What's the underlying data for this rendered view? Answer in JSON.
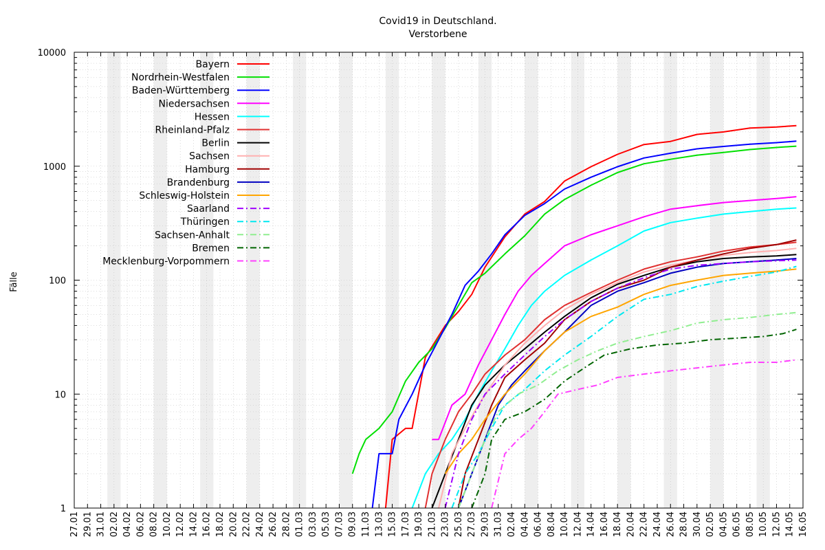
{
  "chart_data": {
    "type": "line",
    "title": "Covid19 in Deutschland.",
    "subtitle": "Verstorbene",
    "xlabel": "",
    "ylabel": "Fälle",
    "y_scale": "log",
    "ylim": [
      1,
      10000
    ],
    "y_ticks": [
      1,
      10,
      100,
      1000,
      10000
    ],
    "y_tick_labels": [
      "1",
      "10",
      "100",
      "1000",
      "10000"
    ],
    "xlim": [
      "2020-01-27",
      "2020-05-16"
    ],
    "x_tick_labels": [
      "27.01",
      "29.01",
      "31.01",
      "02.02",
      "04.02",
      "06.02",
      "08.02",
      "10.02",
      "12.02",
      "14.02",
      "16.02",
      "18.02",
      "20.02",
      "22.02",
      "24.02",
      "26.02",
      "28.02",
      "01.03",
      "03.03",
      "05.03",
      "07.03",
      "09.03",
      "11.03",
      "13.03",
      "15.03",
      "17.03",
      "19.03",
      "21.03",
      "23.03",
      "25.03",
      "27.03",
      "29.03",
      "31.03",
      "02.04",
      "04.04",
      "06.04",
      "08.04",
      "10.04",
      "12.04",
      "14.04",
      "16.04",
      "18.04",
      "20.04",
      "22.04",
      "24.04",
      "26.04",
      "28.04",
      "30.04",
      "02.05",
      "04.05",
      "06.05",
      "08.05",
      "10.05",
      "12.05",
      "14.05",
      "16.05"
    ],
    "grid": true,
    "weekend_shading": true,
    "legend_position": "top-left",
    "series": [
      {
        "name": "Bayern",
        "color": "#ff0000",
        "dash": "solid",
        "x": [
          "2020-03-14",
          "2020-03-15",
          "2020-03-17",
          "2020-03-18",
          "2020-03-20",
          "2020-03-23",
          "2020-03-25",
          "2020-03-27",
          "2020-03-29",
          "2020-04-01",
          "2020-04-04",
          "2020-04-07",
          "2020-04-10",
          "2020-04-14",
          "2020-04-18",
          "2020-04-22",
          "2020-04-26",
          "2020-04-30",
          "2020-05-04",
          "2020-05-08",
          "2020-05-12",
          "2020-05-15"
        ],
        "values": [
          1,
          4,
          5,
          5,
          21,
          40,
          53,
          75,
          130,
          240,
          380,
          490,
          740,
          990,
          1270,
          1550,
          1650,
          1900,
          2000,
          2160,
          2210,
          2270
        ]
      },
      {
        "name": "Nordrhein-Westfalen",
        "color": "#00e000",
        "dash": "solid",
        "x": [
          "2020-03-09",
          "2020-03-10",
          "2020-03-11",
          "2020-03-13",
          "2020-03-15",
          "2020-03-17",
          "2020-03-19",
          "2020-03-21",
          "2020-03-23",
          "2020-03-25",
          "2020-03-27",
          "2020-03-29",
          "2020-04-01",
          "2020-04-04",
          "2020-04-07",
          "2020-04-10",
          "2020-04-14",
          "2020-04-18",
          "2020-04-22",
          "2020-04-26",
          "2020-04-30",
          "2020-05-04",
          "2020-05-08",
          "2020-05-12",
          "2020-05-15"
        ],
        "values": [
          2,
          3,
          4,
          5,
          7,
          13,
          19,
          25,
          38,
          60,
          95,
          115,
          170,
          245,
          380,
          510,
          680,
          880,
          1050,
          1150,
          1250,
          1320,
          1400,
          1460,
          1500
        ]
      },
      {
        "name": "Baden-Württemberg",
        "color": "#0000ff",
        "dash": "solid",
        "x": [
          "2020-03-12",
          "2020-03-13",
          "2020-03-15",
          "2020-03-16",
          "2020-03-18",
          "2020-03-20",
          "2020-03-22",
          "2020-03-24",
          "2020-03-26",
          "2020-03-28",
          "2020-03-30",
          "2020-04-01",
          "2020-04-04",
          "2020-04-07",
          "2020-04-10",
          "2020-04-14",
          "2020-04-18",
          "2020-04-22",
          "2020-04-26",
          "2020-04-30",
          "2020-05-04",
          "2020-05-08",
          "2020-05-12",
          "2020-05-15"
        ],
        "values": [
          1,
          3,
          3,
          6,
          10,
          18,
          30,
          50,
          90,
          120,
          170,
          250,
          370,
          470,
          630,
          800,
          990,
          1180,
          1300,
          1420,
          1490,
          1560,
          1610,
          1660
        ]
      },
      {
        "name": "Niedersachsen",
        "color": "#ff00ff",
        "dash": "solid",
        "x": [
          "2020-03-21",
          "2020-03-22",
          "2020-03-24",
          "2020-03-26",
          "2020-03-28",
          "2020-03-30",
          "2020-04-01",
          "2020-04-03",
          "2020-04-05",
          "2020-04-07",
          "2020-04-10",
          "2020-04-14",
          "2020-04-18",
          "2020-04-22",
          "2020-04-26",
          "2020-04-30",
          "2020-05-04",
          "2020-05-08",
          "2020-05-12",
          "2020-05-15"
        ],
        "values": [
          4,
          4,
          8,
          10,
          18,
          30,
          50,
          80,
          110,
          140,
          200,
          250,
          300,
          360,
          420,
          450,
          480,
          500,
          520,
          540
        ]
      },
      {
        "name": "Hessen",
        "color": "#00ffff",
        "dash": "solid",
        "x": [
          "2020-03-18",
          "2020-03-20",
          "2020-03-22",
          "2020-03-24",
          "2020-03-26",
          "2020-03-28",
          "2020-03-30",
          "2020-04-01",
          "2020-04-03",
          "2020-04-05",
          "2020-04-07",
          "2020-04-10",
          "2020-04-14",
          "2020-04-18",
          "2020-04-22",
          "2020-04-26",
          "2020-04-30",
          "2020-05-04",
          "2020-05-08",
          "2020-05-12",
          "2020-05-15"
        ],
        "values": [
          1,
          2,
          3,
          4,
          6,
          10,
          16,
          25,
          40,
          60,
          80,
          110,
          150,
          200,
          270,
          320,
          350,
          380,
          400,
          420,
          430
        ]
      },
      {
        "name": "Rheinland-Pfalz",
        "color": "#e03030",
        "dash": "solid",
        "x": [
          "2020-03-20",
          "2020-03-21",
          "2020-03-23",
          "2020-03-25",
          "2020-03-27",
          "2020-03-29",
          "2020-04-01",
          "2020-04-04",
          "2020-04-07",
          "2020-04-10",
          "2020-04-14",
          "2020-04-18",
          "2020-04-22",
          "2020-04-26",
          "2020-04-30",
          "2020-05-04",
          "2020-05-08",
          "2020-05-12",
          "2020-05-15"
        ],
        "values": [
          1,
          2,
          4,
          7,
          10,
          15,
          22,
          30,
          45,
          60,
          78,
          100,
          125,
          145,
          160,
          180,
          195,
          205,
          215
        ]
      },
      {
        "name": "Berlin",
        "color": "#000000",
        "dash": "solid",
        "x": [
          "2020-03-21",
          "2020-03-23",
          "2020-03-25",
          "2020-03-27",
          "2020-03-29",
          "2020-04-01",
          "2020-04-04",
          "2020-04-07",
          "2020-04-10",
          "2020-04-14",
          "2020-04-18",
          "2020-04-22",
          "2020-04-26",
          "2020-04-30",
          "2020-05-04",
          "2020-05-08",
          "2020-05-12",
          "2020-05-15"
        ],
        "values": [
          1,
          2,
          4,
          8,
          12,
          18,
          25,
          35,
          48,
          70,
          92,
          110,
          130,
          145,
          155,
          160,
          163,
          168
        ]
      },
      {
        "name": "Sachsen",
        "color": "#ffb0b0",
        "dash": "solid",
        "x": [
          "2020-03-22",
          "2020-03-24",
          "2020-03-26",
          "2020-03-28",
          "2020-03-30",
          "2020-04-01",
          "2020-04-04",
          "2020-04-07",
          "2020-04-10",
          "2020-04-14",
          "2020-04-18",
          "2020-04-22",
          "2020-04-26",
          "2020-04-30",
          "2020-05-04",
          "2020-05-08",
          "2020-05-12",
          "2020-05-15"
        ],
        "values": [
          1,
          3,
          5,
          8,
          12,
          18,
          28,
          40,
          55,
          75,
          95,
          118,
          135,
          150,
          165,
          175,
          182,
          190
        ]
      },
      {
        "name": "Hamburg",
        "color": "#a00000",
        "dash": "solid",
        "x": [
          "2020-03-25",
          "2020-03-26",
          "2020-03-28",
          "2020-03-30",
          "2020-04-01",
          "2020-04-04",
          "2020-04-07",
          "2020-04-10",
          "2020-04-14",
          "2020-04-18",
          "2020-04-22",
          "2020-04-26",
          "2020-04-30",
          "2020-05-04",
          "2020-05-08",
          "2020-05-12",
          "2020-05-15"
        ],
        "values": [
          1,
          2,
          4,
          8,
          14,
          20,
          28,
          45,
          65,
          85,
          100,
          130,
          150,
          170,
          190,
          205,
          225
        ]
      },
      {
        "name": "Brandenburg",
        "color": "#0000c0",
        "dash": "solid",
        "x": [
          "2020-03-25",
          "2020-03-27",
          "2020-03-29",
          "2020-03-31",
          "2020-04-02",
          "2020-04-04",
          "2020-04-07",
          "2020-04-10",
          "2020-04-14",
          "2020-04-18",
          "2020-04-22",
          "2020-04-26",
          "2020-04-30",
          "2020-05-04",
          "2020-05-08",
          "2020-05-12",
          "2020-05-15"
        ],
        "values": [
          1,
          2,
          4,
          8,
          12,
          16,
          24,
          35,
          60,
          80,
          95,
          115,
          130,
          140,
          145,
          150,
          155
        ]
      },
      {
        "name": "Schleswig-Holstein",
        "color": "#ffa500",
        "dash": "solid",
        "x": [
          "2020-03-23",
          "2020-03-25",
          "2020-03-27",
          "2020-03-29",
          "2020-04-01",
          "2020-04-04",
          "2020-04-07",
          "2020-04-10",
          "2020-04-14",
          "2020-04-18",
          "2020-04-22",
          "2020-04-26",
          "2020-04-30",
          "2020-05-04",
          "2020-05-08",
          "2020-05-12",
          "2020-05-15"
        ],
        "values": [
          2,
          3,
          4,
          6,
          10,
          15,
          24,
          35,
          48,
          58,
          75,
          90,
          100,
          110,
          115,
          120,
          125
        ]
      },
      {
        "name": "Saarland",
        "color": "#a000ff",
        "dash": "dashdot",
        "x": [
          "2020-03-23",
          "2020-03-25",
          "2020-03-27",
          "2020-03-29",
          "2020-04-01",
          "2020-04-04",
          "2020-04-07",
          "2020-04-10",
          "2020-04-14",
          "2020-04-18",
          "2020-04-22",
          "2020-04-26",
          "2020-04-30",
          "2020-05-04",
          "2020-05-08",
          "2020-05-12",
          "2020-05-15"
        ],
        "values": [
          1,
          3,
          6,
          10,
          15,
          22,
          32,
          45,
          65,
          85,
          105,
          125,
          135,
          140,
          145,
          148,
          150
        ]
      },
      {
        "name": "Thüringen",
        "color": "#00e8f0",
        "dash": "dashdot",
        "x": [
          "2020-03-24",
          "2020-03-26",
          "2020-03-28",
          "2020-03-30",
          "2020-04-01",
          "2020-04-04",
          "2020-04-07",
          "2020-04-10",
          "2020-04-14",
          "2020-04-18",
          "2020-04-22",
          "2020-04-26",
          "2020-04-30",
          "2020-05-04",
          "2020-05-08",
          "2020-05-12",
          "2020-05-15"
        ],
        "values": [
          1,
          2,
          3,
          5,
          8,
          11,
          16,
          22,
          32,
          48,
          68,
          75,
          88,
          98,
          108,
          118,
          132
        ]
      },
      {
        "name": "Sachsen-Anhalt",
        "color": "#90ee90",
        "dash": "dashdot",
        "x": [
          "2020-03-25",
          "2020-03-27",
          "2020-03-29",
          "2020-03-31",
          "2020-04-03",
          "2020-04-06",
          "2020-04-09",
          "2020-04-12",
          "2020-04-15",
          "2020-04-18",
          "2020-04-22",
          "2020-04-26",
          "2020-04-30",
          "2020-05-04",
          "2020-05-08",
          "2020-05-12",
          "2020-05-15"
        ],
        "values": [
          1,
          2,
          4,
          7,
          10,
          12,
          16,
          20,
          24,
          28,
          32,
          36,
          42,
          45,
          47,
          50,
          52
        ]
      },
      {
        "name": "Bremen",
        "color": "#006400",
        "dash": "dashdot",
        "x": [
          "2020-03-27",
          "2020-03-29",
          "2020-03-30",
          "2020-04-01",
          "2020-04-04",
          "2020-04-07",
          "2020-04-10",
          "2020-04-13",
          "2020-04-16",
          "2020-04-20",
          "2020-04-24",
          "2020-04-28",
          "2020-05-02",
          "2020-05-06",
          "2020-05-10",
          "2020-05-13",
          "2020-05-15"
        ],
        "values": [
          1,
          2,
          4,
          6,
          7,
          9,
          13,
          17,
          22,
          25,
          27,
          28,
          30,
          31,
          32,
          34,
          37
        ]
      },
      {
        "name": "Mecklenburg-Vorpommern",
        "color": "#ff40ff",
        "dash": "dashdot",
        "x": [
          "2020-03-30",
          "2020-04-01",
          "2020-04-03",
          "2020-04-05",
          "2020-04-07",
          "2020-04-09",
          "2020-04-12",
          "2020-04-15",
          "2020-04-18",
          "2020-04-22",
          "2020-04-26",
          "2020-04-30",
          "2020-05-04",
          "2020-05-08",
          "2020-05-12",
          "2020-05-15"
        ],
        "values": [
          1,
          3,
          4,
          5,
          7,
          10,
          11,
          12,
          14,
          15,
          16,
          17,
          18,
          19,
          19,
          20
        ]
      }
    ]
  }
}
